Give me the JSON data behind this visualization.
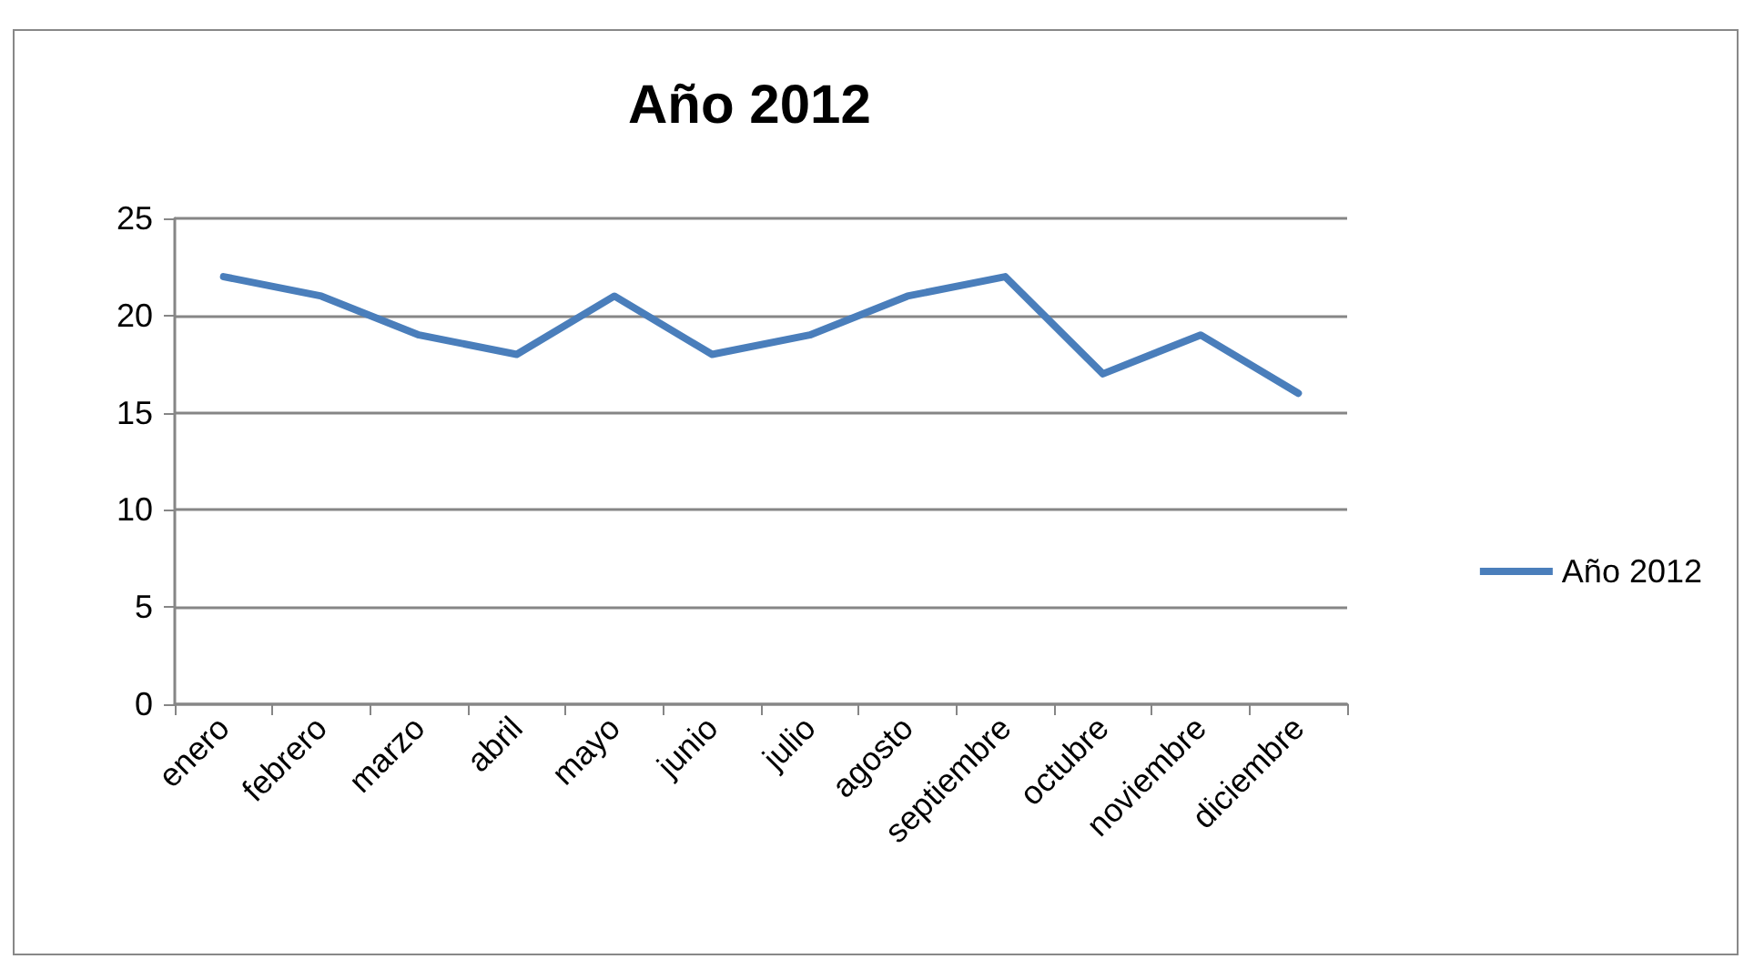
{
  "chart_data": {
    "type": "line",
    "title": "Año 2012",
    "categories": [
      "enero",
      "febrero",
      "marzo",
      "abril",
      "mayo",
      "junio",
      "julio",
      "agosto",
      "septiembre",
      "octubre",
      "noviembre",
      "diciembre"
    ],
    "series": [
      {
        "name": "Año 2012",
        "color": "#4a7ebb",
        "values": [
          22,
          21,
          19,
          18,
          21,
          18,
          19,
          21,
          22,
          17,
          19,
          16
        ]
      }
    ],
    "ylim": [
      0,
      25
    ],
    "yticks": [
      0,
      5,
      10,
      15,
      20,
      25
    ],
    "grid": "y",
    "legend": "right",
    "marker": "none",
    "line_style": "solid"
  }
}
